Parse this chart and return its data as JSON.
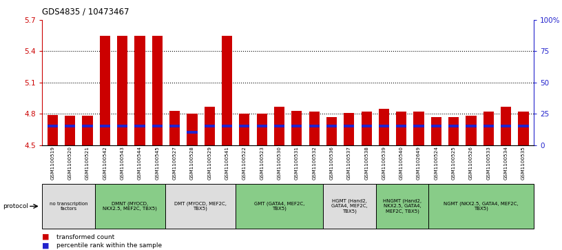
{
  "title": "GDS4835 / 10473467",
  "samples": [
    "GSM1100519",
    "GSM1100520",
    "GSM1100521",
    "GSM1100542",
    "GSM1100543",
    "GSM1100544",
    "GSM1100545",
    "GSM1100527",
    "GSM1100528",
    "GSM1100529",
    "GSM1100541",
    "GSM1100522",
    "GSM1100523",
    "GSM1100530",
    "GSM1100531",
    "GSM1100532",
    "GSM1100536",
    "GSM1100537",
    "GSM1100538",
    "GSM1100539",
    "GSM1100540",
    "GSM1102649",
    "GSM1100524",
    "GSM1100525",
    "GSM1100526",
    "GSM1100533",
    "GSM1100534",
    "GSM1100535"
  ],
  "transformed_count": [
    4.79,
    4.78,
    4.78,
    5.55,
    5.55,
    5.55,
    5.55,
    4.83,
    4.8,
    4.87,
    5.55,
    4.8,
    4.8,
    4.87,
    4.83,
    4.82,
    4.77,
    4.81,
    4.82,
    4.85,
    4.82,
    4.82,
    4.77,
    4.77,
    4.78,
    4.82,
    4.87,
    4.82
  ],
  "percentile_rank": [
    15,
    15,
    15,
    15,
    15,
    15,
    15,
    15,
    10,
    15,
    15,
    15,
    15,
    15,
    15,
    15,
    15,
    15,
    15,
    15,
    15,
    15,
    15,
    15,
    15,
    15,
    15,
    15
  ],
  "ymin": 4.5,
  "ymax": 5.7,
  "yticks_left": [
    4.5,
    4.8,
    5.1,
    5.4,
    5.7
  ],
  "yticks_right": [
    0,
    25,
    50,
    75,
    100
  ],
  "bar_color_red": "#CC0000",
  "bar_color_blue": "#2222CC",
  "groups": [
    {
      "label": "no transcription\nfactors",
      "start": 0,
      "end": 3,
      "color": "#DDDDDD"
    },
    {
      "label": "DMNT (MYOCD,\nNKX2.5, MEF2C, TBX5)",
      "start": 3,
      "end": 7,
      "color": "#88CC88"
    },
    {
      "label": "DMT (MYOCD, MEF2C,\nTBX5)",
      "start": 7,
      "end": 11,
      "color": "#DDDDDD"
    },
    {
      "label": "GMT (GATA4, MEF2C,\nTBX5)",
      "start": 11,
      "end": 16,
      "color": "#88CC88"
    },
    {
      "label": "HGMT (Hand2,\nGATA4, MEF2C,\nTBX5)",
      "start": 16,
      "end": 19,
      "color": "#DDDDDD"
    },
    {
      "label": "HNGMT (Hand2,\nNKX2.5, GATA4,\nMEF2C, TBX5)",
      "start": 19,
      "end": 22,
      "color": "#88CC88"
    },
    {
      "label": "NGMT (NKX2.5, GATA4, MEF2C,\nTBX5)",
      "start": 22,
      "end": 28,
      "color": "#88CC88"
    }
  ]
}
